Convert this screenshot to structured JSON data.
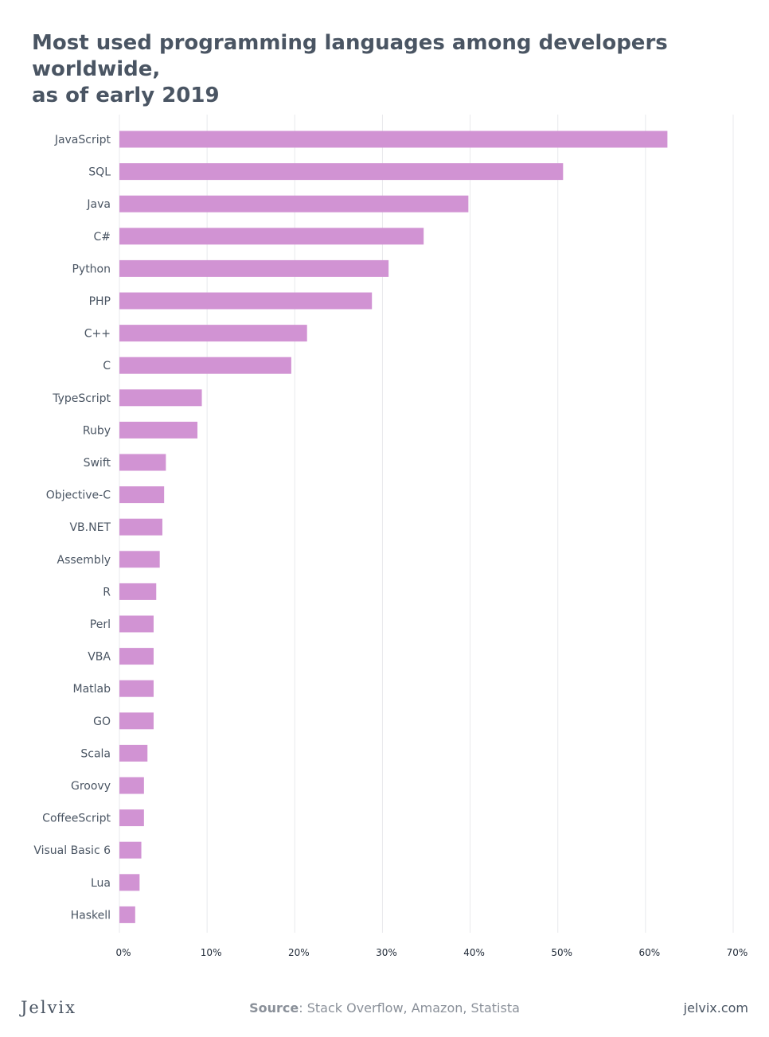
{
  "chart_data": {
    "type": "bar",
    "orientation": "horizontal",
    "title": "Most used programming languages among developers worldwide, as of early 2019",
    "title_lines": [
      "Most used programming languages among developers worldwide,",
      "as of early 2019"
    ],
    "categories": [
      "JavaScript",
      "SQL",
      "Java",
      "C#",
      "Python",
      "PHP",
      "C++",
      "C",
      "TypeScript",
      "Ruby",
      "Swift",
      "Objective-C",
      "VB.NET",
      "Assembly",
      "R",
      "Perl",
      "VBA",
      "Matlab",
      "GO",
      "Scala",
      "Groovy",
      "CoffeeScript",
      "Visual Basic 6",
      "Lua",
      "Haskell"
    ],
    "values": [
      62.5,
      50.6,
      39.8,
      34.7,
      30.7,
      28.8,
      21.4,
      19.6,
      9.4,
      8.9,
      5.3,
      5.1,
      4.9,
      4.6,
      4.2,
      3.9,
      3.9,
      3.9,
      3.9,
      3.2,
      2.8,
      2.8,
      2.5,
      2.3,
      1.8
    ],
    "xlim": [
      0,
      70
    ],
    "xticks": [
      0,
      10,
      20,
      30,
      40,
      50,
      60,
      70
    ],
    "xtick_labels": [
      "0%",
      "10%",
      "20%",
      "30%",
      "40%",
      "50%",
      "60%",
      "70%"
    ],
    "bar_color": "#d193d3",
    "grid": true,
    "legend": "none"
  },
  "footer": {
    "brand": "Jelvix",
    "source_label": "Source",
    "source_text": ": Stack Overflow, Amazon, Statista",
    "site": "jelvix.com"
  },
  "colors": {
    "text": "#4a5563",
    "grid": "#e8e9ec",
    "muted": "#8a9099"
  }
}
